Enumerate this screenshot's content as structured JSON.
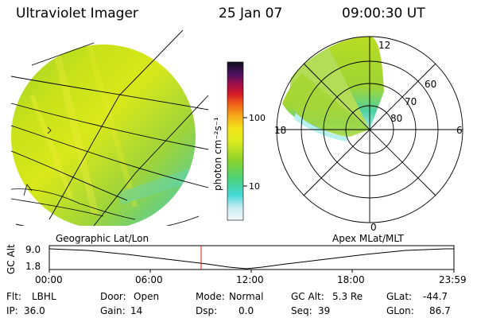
{
  "header": {
    "title": "Ultraviolet Imager",
    "date": "25 Jan 07",
    "time": "09:00:30 UT"
  },
  "colorbar": {
    "ticks": [
      "100",
      "10"
    ],
    "unit_label": "photon cm⁻²s⁻¹"
  },
  "polar_plot": {
    "mlt_labels": [
      "12",
      "18",
      "6",
      "0"
    ],
    "lat_labels": [
      "60",
      "70",
      "80"
    ]
  },
  "timeline": {
    "left_title": "Geographic Lat/Lon",
    "right_title": "Apex MLat/MLT",
    "axis_label": "GC Alt",
    "y_ticks": [
      "9.0",
      "1.8"
    ],
    "x_ticks": [
      "00:00",
      "06:00",
      "12:00",
      "18:00",
      "23:59"
    ],
    "marker_time": "09:00"
  },
  "info": {
    "flt_label": "Flt:",
    "flt_value": "LBHL",
    "door_label": "Door:",
    "door_value": "Open",
    "mode_label": "Mode:",
    "mode_value": "Normal",
    "gcalt_label": "GC Alt:",
    "gcalt_value": "5.3 Re",
    "glat_label": "GLat:",
    "glat_value": "-44.7",
    "ip_label": "IP:",
    "ip_value": "36.0",
    "gain_label": "Gain:",
    "gain_value": "14",
    "dsp_label": "Dsp:",
    "dsp_value": "0.0",
    "seq_label": "Seq:",
    "seq_value": "39",
    "glon_label": "GLon:",
    "glon_value": "86.7"
  }
}
